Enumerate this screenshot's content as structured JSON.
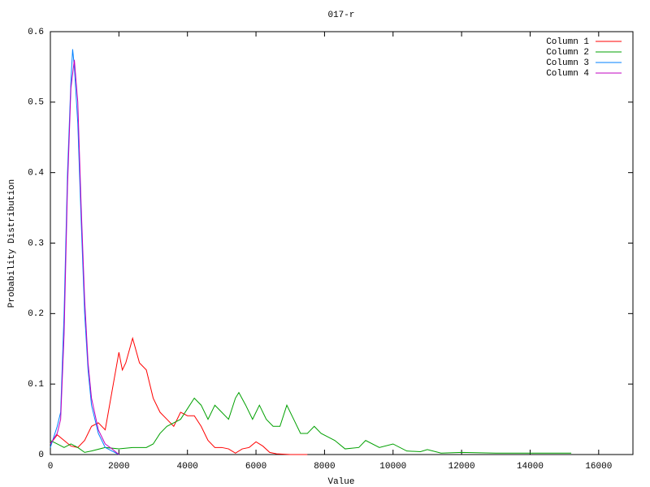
{
  "chart_data": {
    "type": "line",
    "title": "017-r",
    "x_label": "Value",
    "y_label": "Probability Distribution",
    "xlim": [
      0,
      17000
    ],
    "ylim": [
      0,
      0.6
    ],
    "xticks": [
      0,
      2000,
      4000,
      6000,
      8000,
      10000,
      12000,
      14000,
      16000
    ],
    "yticks": [
      0,
      0.1,
      0.2,
      0.3,
      0.4,
      0.5,
      0.6
    ],
    "legend": "top-right",
    "series": [
      {
        "name": "Column 1",
        "color": "#ff0000",
        "x": [
          0,
          200,
          400,
          600,
          800,
          1000,
          1200,
          1400,
          1600,
          1800,
          2000,
          2100,
          2200,
          2400,
          2600,
          2800,
          3000,
          3200,
          3400,
          3600,
          3800,
          4000,
          4200,
          4400,
          4600,
          4800,
          5000,
          5200,
          5400,
          5600,
          5800,
          6000,
          6200,
          6400,
          6600,
          7000,
          7500
        ],
        "values": [
          0.015,
          0.028,
          0.02,
          0.012,
          0.01,
          0.02,
          0.04,
          0.045,
          0.035,
          0.09,
          0.145,
          0.12,
          0.13,
          0.165,
          0.13,
          0.12,
          0.08,
          0.06,
          0.05,
          0.04,
          0.06,
          0.055,
          0.055,
          0.04,
          0.02,
          0.01,
          0.01,
          0.008,
          0.002,
          0.008,
          0.01,
          0.018,
          0.012,
          0.003,
          0.001,
          0,
          0
        ]
      },
      {
        "name": "Column 2",
        "color": "#00a000",
        "x": [
          0,
          200,
          400,
          600,
          800,
          1000,
          1200,
          1600,
          2000,
          2400,
          2800,
          3000,
          3200,
          3400,
          3600,
          3800,
          4000,
          4200,
          4400,
          4600,
          4800,
          5000,
          5200,
          5400,
          5500,
          5700,
          5900,
          6100,
          6300,
          6500,
          6700,
          6900,
          7100,
          7300,
          7500,
          7700,
          7900,
          8100,
          8300,
          8600,
          9000,
          9200,
          9600,
          10000,
          10400,
          10800,
          11000,
          11400,
          12000,
          13000,
          14000,
          15200
        ],
        "values": [
          0.02,
          0.015,
          0.01,
          0.015,
          0.01,
          0.003,
          0.005,
          0.01,
          0.008,
          0.01,
          0.01,
          0.015,
          0.03,
          0.04,
          0.045,
          0.05,
          0.065,
          0.08,
          0.07,
          0.05,
          0.07,
          0.06,
          0.05,
          0.08,
          0.088,
          0.07,
          0.05,
          0.07,
          0.05,
          0.04,
          0.04,
          0.07,
          0.05,
          0.03,
          0.03,
          0.04,
          0.03,
          0.025,
          0.02,
          0.008,
          0.01,
          0.02,
          0.01,
          0.015,
          0.005,
          0.004,
          0.007,
          0.002,
          0.003,
          0.002,
          0.002,
          0.002
        ]
      },
      {
        "name": "Column 3",
        "color": "#0080ff",
        "x": [
          0,
          200,
          300,
          400,
          500,
          600,
          650,
          700,
          800,
          900,
          1000,
          1100,
          1200,
          1400,
          1600,
          1800,
          2000
        ],
        "values": [
          0.01,
          0.04,
          0.06,
          0.2,
          0.4,
          0.53,
          0.575,
          0.55,
          0.47,
          0.33,
          0.2,
          0.12,
          0.07,
          0.03,
          0.01,
          0.005,
          0
        ]
      },
      {
        "name": "Column 4",
        "color": "#c000c0",
        "x": [
          0,
          200,
          300,
          400,
          500,
          600,
          700,
          800,
          900,
          1000,
          1100,
          1200,
          1400,
          1600,
          1800,
          2000
        ],
        "values": [
          0.015,
          0.03,
          0.05,
          0.17,
          0.38,
          0.52,
          0.56,
          0.5,
          0.35,
          0.22,
          0.13,
          0.08,
          0.035,
          0.015,
          0.008,
          0
        ]
      }
    ]
  }
}
